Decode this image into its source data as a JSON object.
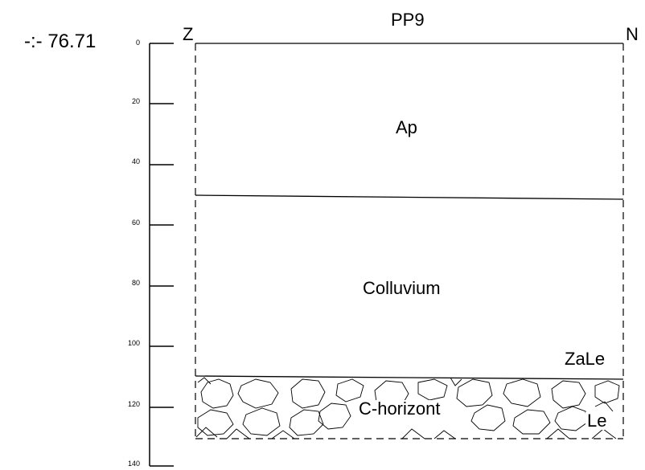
{
  "elevation": "-:- 76.71",
  "profile_title": "PP9",
  "side_left": "Z",
  "side_right": "N",
  "depth_ticks": [
    "0",
    "20",
    "40",
    "60",
    "80",
    "100",
    "120",
    "140"
  ],
  "horizons": {
    "ap": "Ap",
    "colluvium": "Colluvium",
    "c_horizon": "C-horizont"
  },
  "texture_labels": {
    "upper": "ZaLe",
    "lower": "Le"
  }
}
